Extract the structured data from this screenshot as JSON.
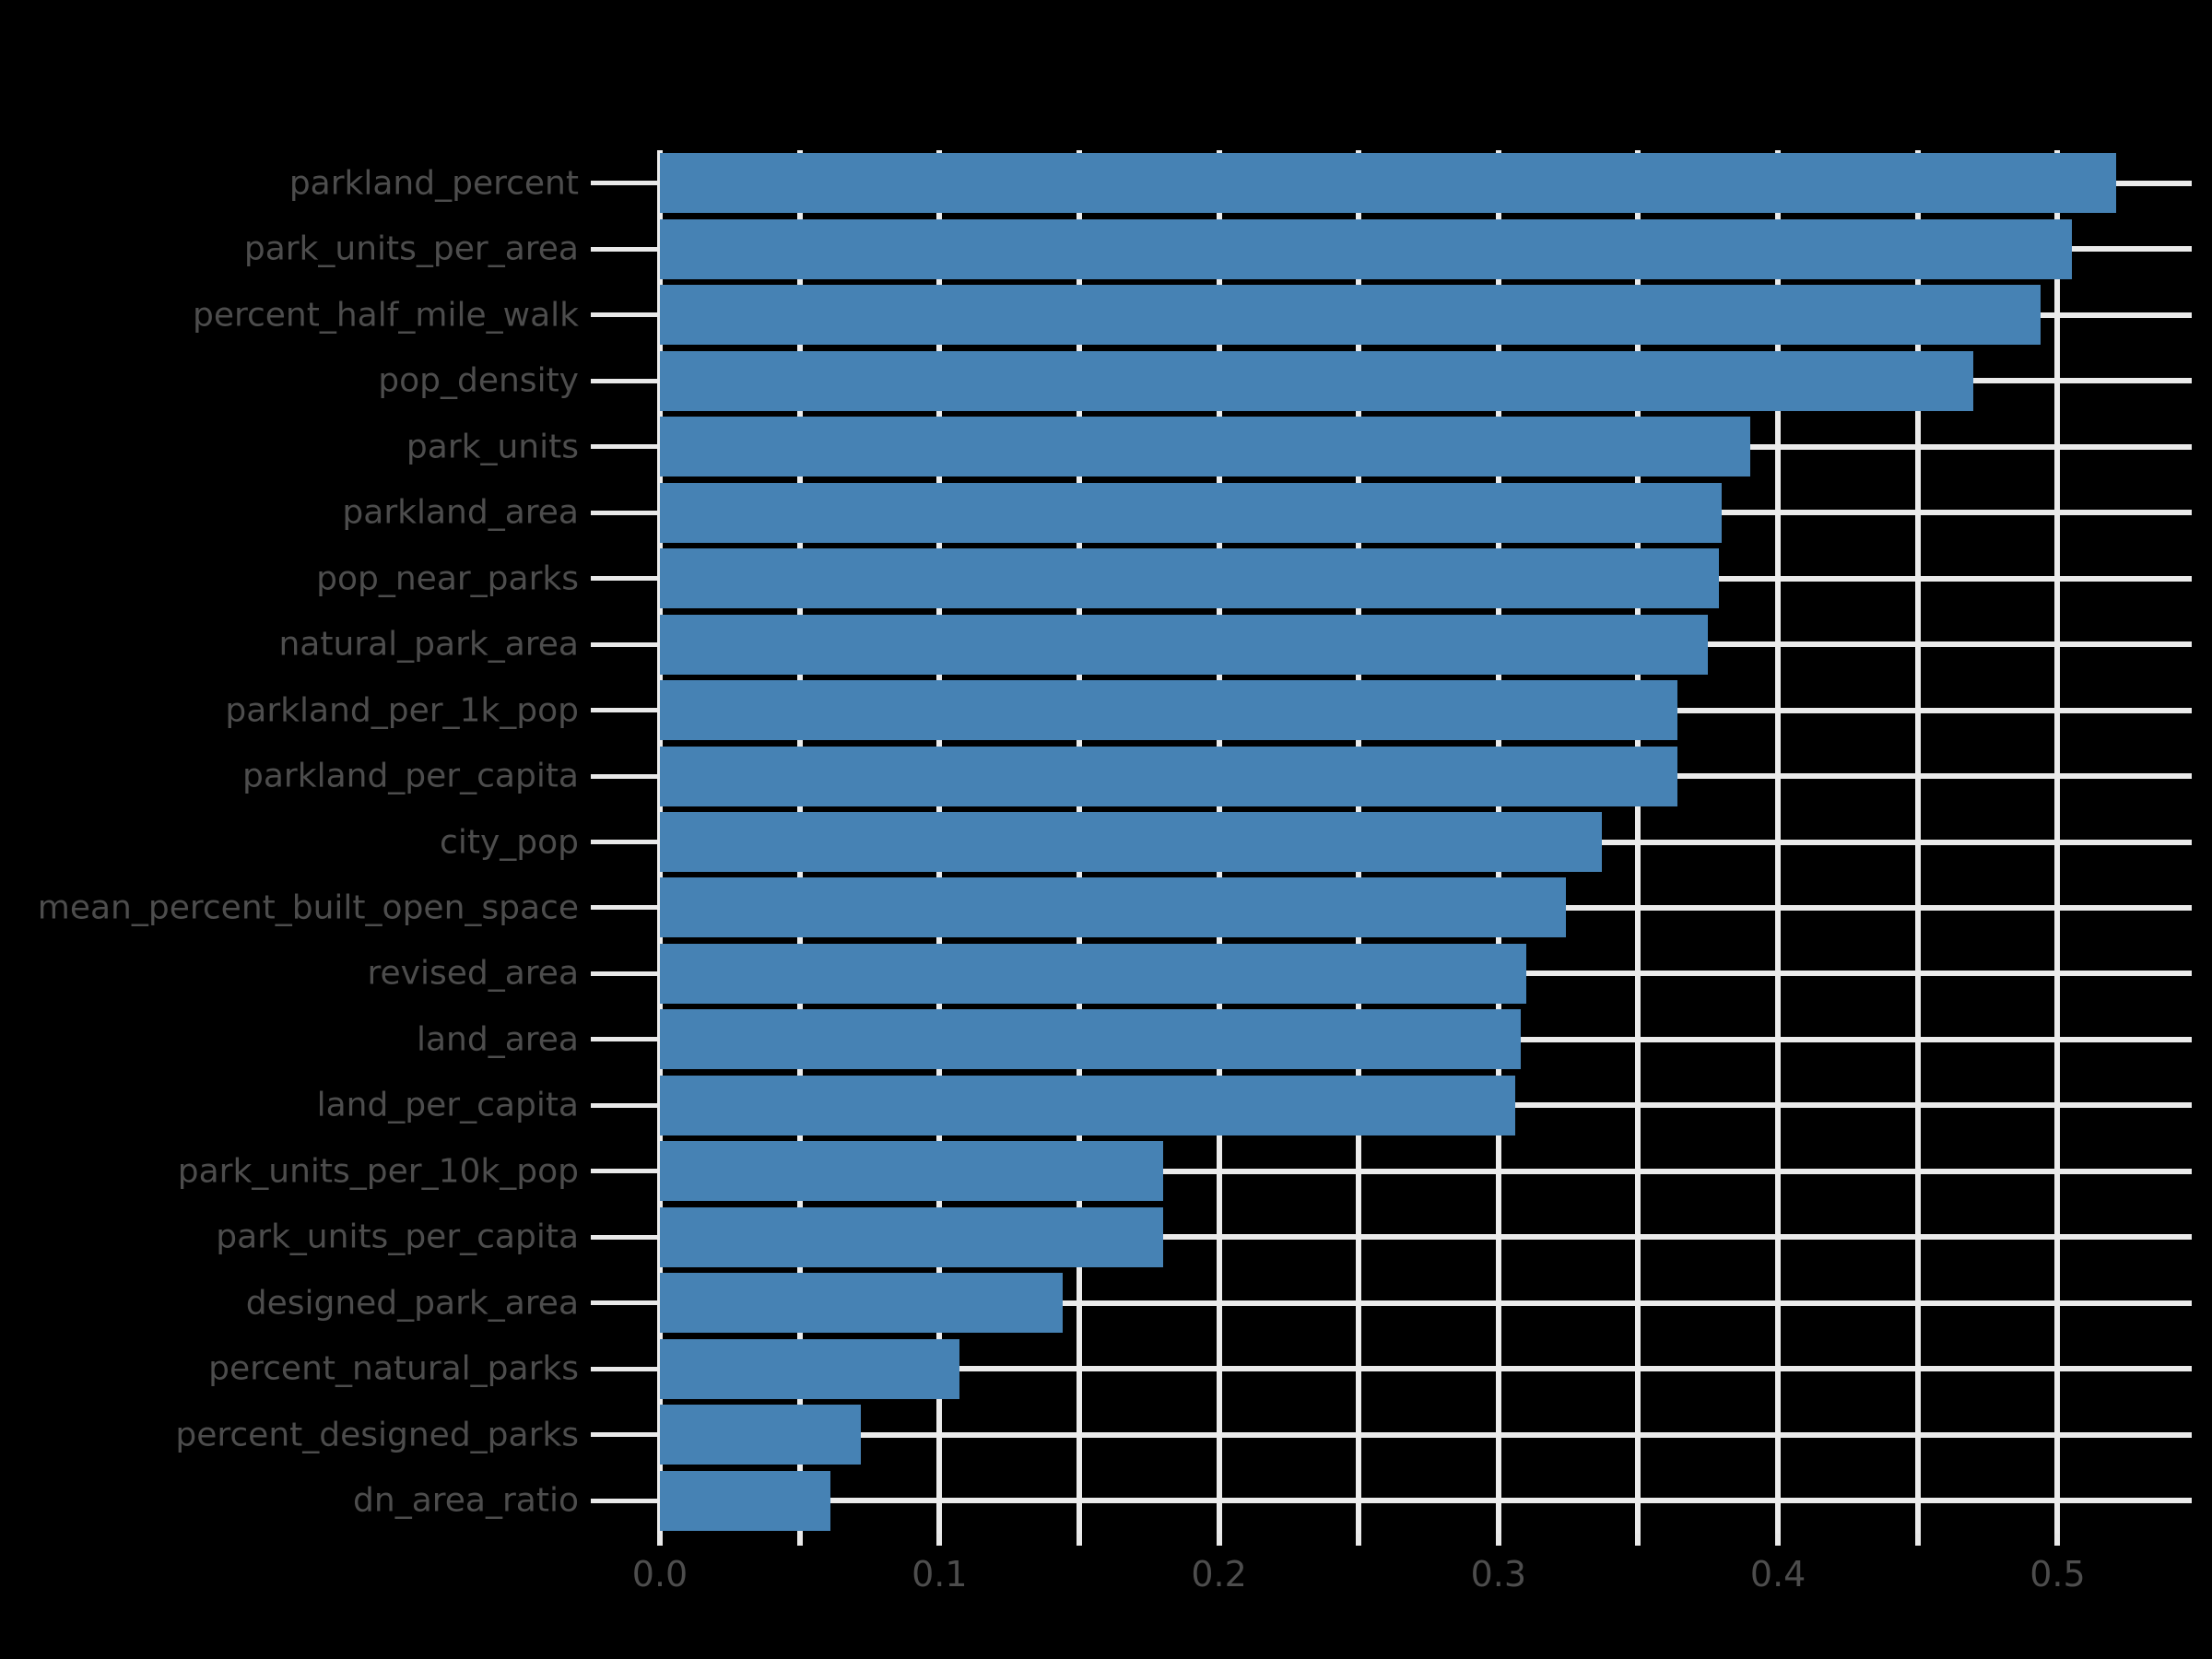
{
  "figure": {
    "background_color": "#000000"
  },
  "chart_data": {
    "type": "bar",
    "orientation": "horizontal",
    "title": "",
    "xlabel": "",
    "ylabel": "",
    "categories": [
      "parkland_percent",
      "park_units_per_area",
      "percent_half_mile_walk",
      "pop_density",
      "park_units",
      "parkland_area",
      "pop_near_parks",
      "natural_park_area",
      "parkland_per_1k_pop",
      "parkland_per_capita",
      "city_pop",
      "mean_percent_built_open_space",
      "revised_area",
      "land_area",
      "land_per_capita",
      "park_units_per_10k_pop",
      "park_units_per_capita",
      "designed_park_area",
      "percent_natural_parks",
      "percent_designed_parks",
      "dn_area_ratio"
    ],
    "values": [
      0.521,
      0.505,
      0.494,
      0.47,
      0.39,
      0.38,
      0.379,
      0.375,
      0.364,
      0.364,
      0.337,
      0.324,
      0.31,
      0.308,
      0.306,
      0.18,
      0.18,
      0.144,
      0.107,
      0.072,
      0.061
    ],
    "xlim": [
      0,
      0.548
    ],
    "x_tick_values": [
      0,
      0.05,
      0.1,
      0.15,
      0.2,
      0.25,
      0.3,
      0.35,
      0.4,
      0.45,
      0.5
    ],
    "x_tick_label_values": [
      0,
      0.1,
      0.2,
      0.3,
      0.4,
      0.5
    ],
    "x_tick_labels": [
      "0.0",
      "0.1",
      "0.2",
      "0.3",
      "0.4",
      "0.5"
    ],
    "grid": true,
    "legend_visible": false,
    "colors": {
      "bar": "#4682B4",
      "grid": "#EBEBEB",
      "tick": "#E9E9E9",
      "tick_label": "#4D4D4D",
      "background": "#000000"
    }
  }
}
